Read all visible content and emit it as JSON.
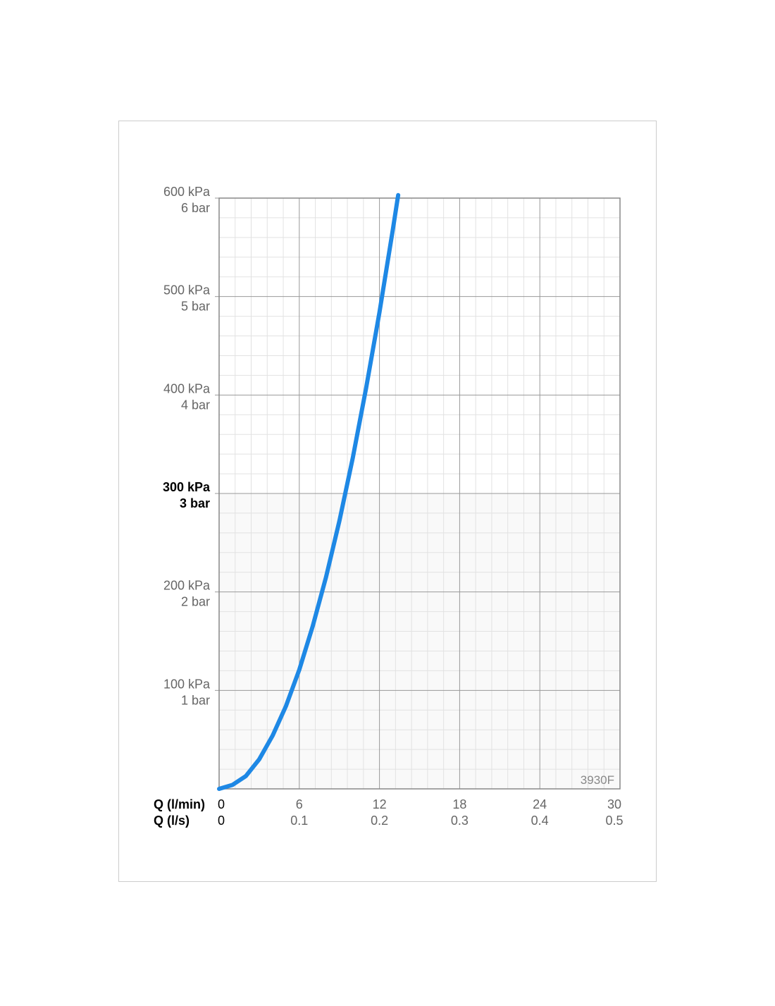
{
  "chart_data": {
    "type": "line",
    "watermark": "3930F",
    "x_label": "Q (l/min)",
    "x2_label": "Q (l/s)",
    "x": [
      0,
      1,
      2,
      3,
      4,
      5,
      6,
      7,
      8,
      9,
      10,
      11,
      12,
      13,
      13.4
    ],
    "series": [
      {
        "color": "#1e88e5",
        "values": [
          0,
          4,
          13,
          30,
          54,
          84,
          121,
          165,
          215,
          272,
          336,
          407,
          484,
          568,
          603
        ]
      }
    ],
    "xlim": [
      0,
      30
    ],
    "xticks": [
      0,
      6,
      12,
      18,
      24,
      30
    ],
    "x2ticks": [
      0,
      {
        "value": 6,
        "label": "0.1"
      },
      {
        "value": 12,
        "label": "0.2"
      },
      {
        "value": 18,
        "label": "0.3"
      },
      {
        "value": 24,
        "label": "0.4"
      },
      {
        "value": 30,
        "label": "0.5"
      }
    ],
    "ylim": [
      0,
      600
    ],
    "yticks": [
      {
        "value": 100,
        "label": "100 kPa"
      },
      {
        "value": 200,
        "label": "200 kPa"
      },
      {
        "value": 300,
        "label": "300 kPa",
        "bold": true
      },
      {
        "value": 400,
        "label": "400 kPa"
      },
      {
        "value": 500,
        "label": "500 kPa"
      },
      {
        "value": 600,
        "label": "600 kPa"
      }
    ],
    "y2ticks": [
      {
        "value": 100,
        "label": "1 bar"
      },
      {
        "value": 200,
        "label": "2 bar"
      },
      {
        "value": 300,
        "label": "3 bar",
        "bold": true
      },
      {
        "value": 400,
        "label": "4 bar"
      },
      {
        "value": 500,
        "label": "5 bar"
      },
      {
        "value": 600,
        "label": "6 bar"
      }
    ],
    "grid": true,
    "minor_grid_divisions": 5
  }
}
